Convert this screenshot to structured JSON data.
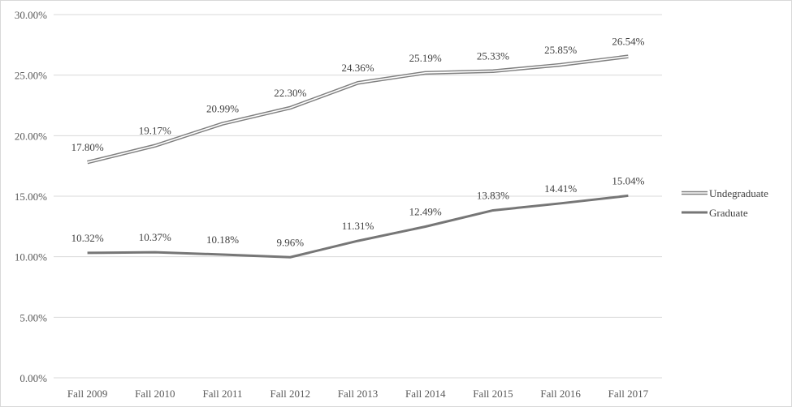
{
  "chart_data": {
    "type": "line",
    "title": "",
    "xlabel": "",
    "ylabel": "",
    "categories": [
      "Fall 2009",
      "Fall 2010",
      "Fall 2011",
      "Fall 2012",
      "Fall 2013",
      "Fall 2014",
      "Fall 2015",
      "Fall 2016",
      "Fall 2017"
    ],
    "yticks": [
      "0.00%",
      "5.00%",
      "10.00%",
      "15.00%",
      "20.00%",
      "25.00%",
      "30.00%"
    ],
    "ylim": [
      0,
      30
    ],
    "grid": true,
    "legend_position": "right",
    "series": [
      {
        "name": "Undegraduate",
        "style": "double-line",
        "color": "#7f7f7f",
        "values": [
          17.8,
          19.17,
          20.99,
          22.3,
          24.36,
          25.19,
          25.33,
          25.85,
          26.54
        ],
        "labels": [
          "17.80%",
          "19.17%",
          "20.99%",
          "22.30%",
          "24.36%",
          "25.19%",
          "25.33%",
          "25.85%",
          "26.54%"
        ]
      },
      {
        "name": "Graduate",
        "style": "solid",
        "color": "#767676",
        "values": [
          10.32,
          10.37,
          10.18,
          9.96,
          11.31,
          12.49,
          13.83,
          14.41,
          15.04
        ],
        "labels": [
          "10.32%",
          "10.37%",
          "10.18%",
          "9.96%",
          "11.31%",
          "12.49%",
          "13.83%",
          "14.41%",
          "15.04%"
        ]
      }
    ]
  }
}
